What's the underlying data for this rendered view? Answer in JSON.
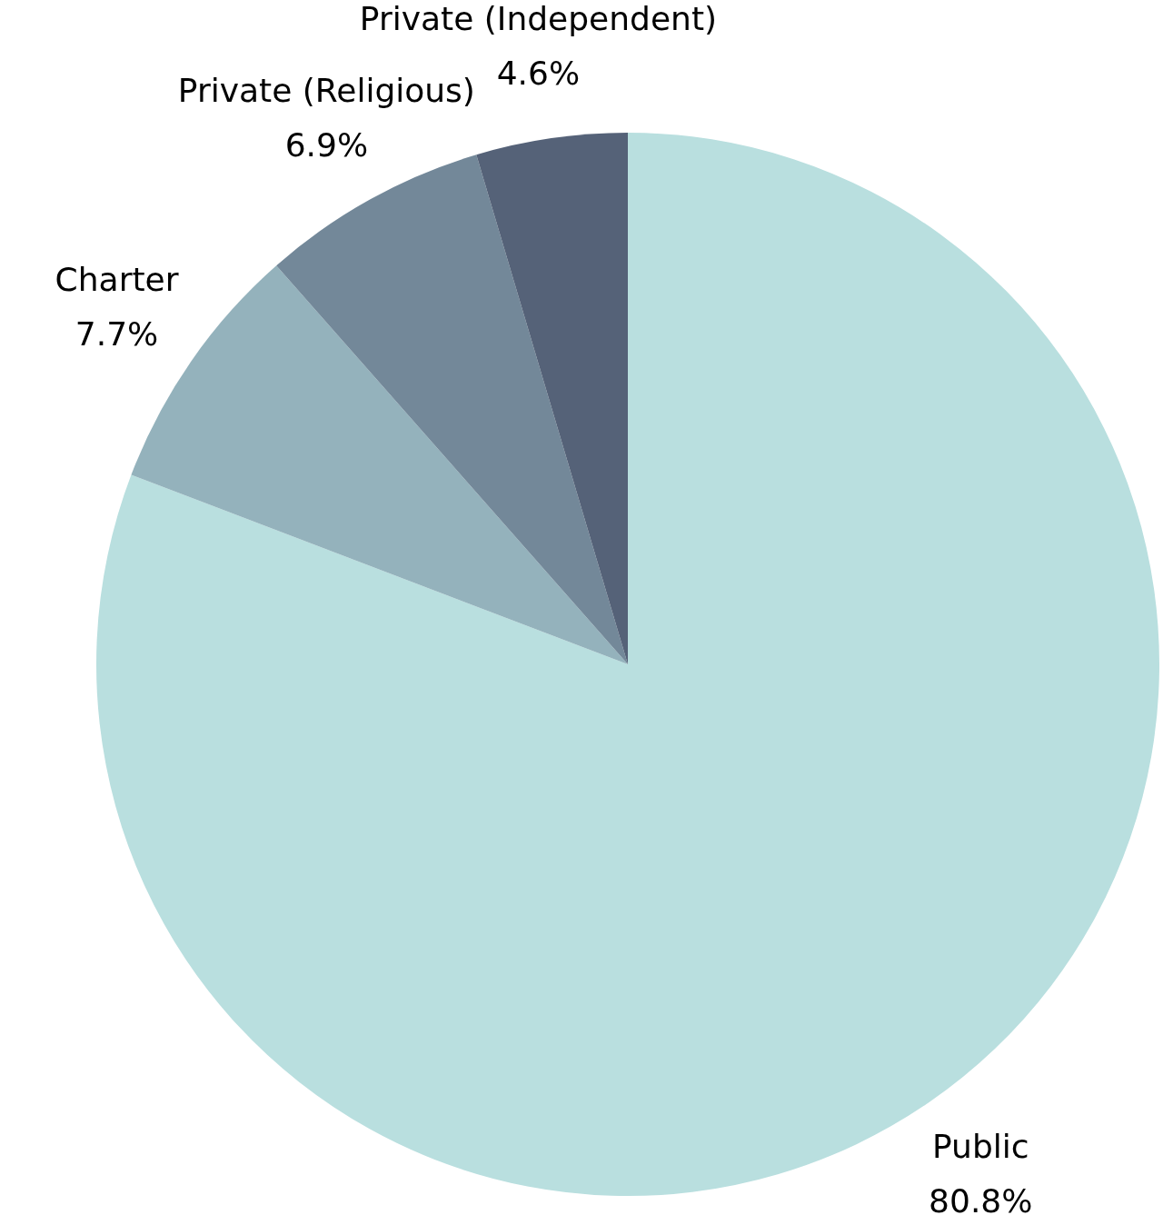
{
  "chart_data": {
    "type": "pie",
    "categories": [
      "Public",
      "Charter",
      "Private (Religious)",
      "Private (Independent)"
    ],
    "values": [
      80.8,
      7.7,
      6.9,
      4.6
    ],
    "value_labels": [
      "80.8%",
      "7.7%",
      "6.9%",
      "4.6%"
    ],
    "colors": [
      "#b9dfdf",
      "#94b2bc",
      "#738899",
      "#556278"
    ],
    "legend": false
  }
}
